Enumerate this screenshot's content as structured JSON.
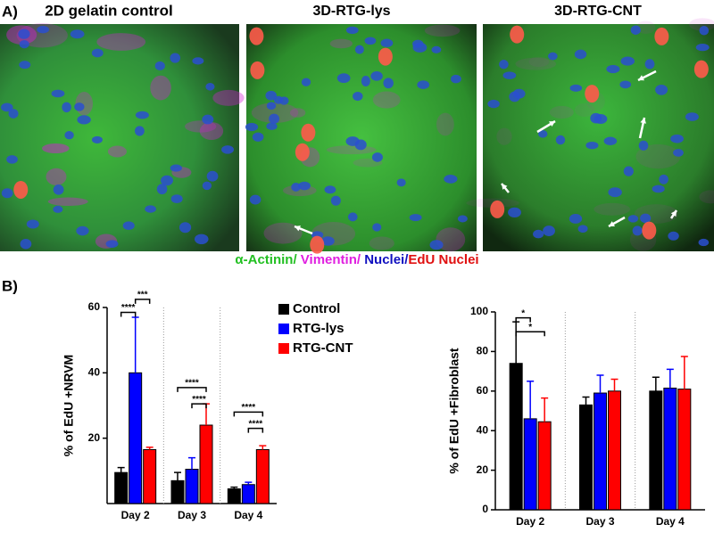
{
  "panel_a": {
    "label": "A)",
    "image_titles": [
      "2D gelatin control",
      "3D-RTG-lys",
      "3D-RTG-CNT"
    ],
    "caption": [
      "α-Actinin/",
      " Vimentin/",
      " Nuclei/",
      "EdU Nuclei"
    ]
  },
  "panel_b": {
    "label": "B)"
  },
  "chart_data": [
    {
      "type": "bar",
      "y_label": "% of EdU +NRVM",
      "categories": [
        "Day 2",
        "Day 3",
        "Day 4"
      ],
      "series": [
        {
          "name": "Control",
          "color": "#000000",
          "values": [
            9.5,
            7,
            4.5
          ],
          "errors": [
            1.5,
            2.5,
            0.5
          ]
        },
        {
          "name": "RTG-lys",
          "color": "#0000ff",
          "values": [
            40,
            10.5,
            5.8
          ],
          "errors": [
            17,
            3.5,
            0.7
          ]
        },
        {
          "name": "RTG-CNT",
          "color": "#ff0000",
          "values": [
            16.5,
            24,
            16.5
          ],
          "errors": [
            0.7,
            6.5,
            1.2
          ]
        }
      ],
      "ylim": [
        0,
        60
      ],
      "yticks": [
        20,
        40,
        60
      ],
      "annotations": [
        "****",
        "***",
        "****",
        "****",
        "****",
        "****"
      ]
    },
    {
      "type": "bar",
      "y_label": "% of EdU +Fibroblast",
      "categories": [
        "Day 2",
        "Day 3",
        "Day 4"
      ],
      "series": [
        {
          "name": "Control",
          "color": "#000000",
          "values": [
            74,
            53,
            60
          ],
          "errors": [
            21,
            4,
            7
          ]
        },
        {
          "name": "RTG-lys",
          "color": "#0000ff",
          "values": [
            46,
            59,
            61.5
          ],
          "errors": [
            19,
            9,
            9.5
          ]
        },
        {
          "name": "RTG-CNT",
          "color": "#ff0000",
          "values": [
            44.5,
            60,
            61
          ],
          "errors": [
            12,
            6,
            16.5
          ]
        }
      ],
      "ylim": [
        0,
        100
      ],
      "yticks": [
        0,
        20,
        40,
        60,
        80,
        100
      ],
      "annotations": [
        "*",
        "*"
      ]
    }
  ]
}
